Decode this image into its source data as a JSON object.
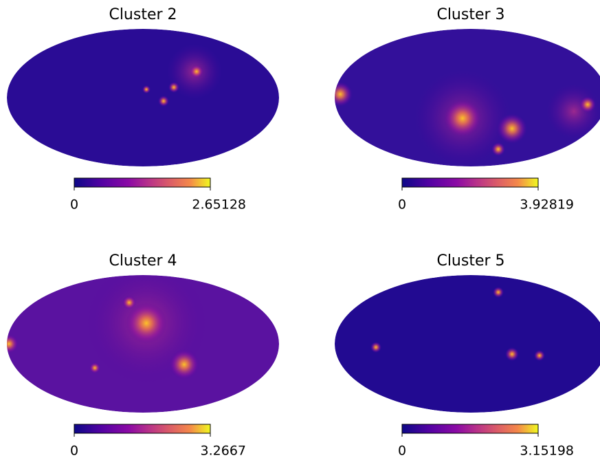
{
  "chart_data": [
    {
      "type": "sky_map",
      "title": "Cluster 2",
      "colorbar": {
        "lim": [
          0,
          2.65128
        ],
        "ticks": [
          0,
          2.65128
        ]
      }
    },
    {
      "type": "sky_map",
      "title": "Cluster 3",
      "colorbar": {
        "lim": [
          0,
          3.92819
        ],
        "ticks": [
          0,
          3.92819
        ]
      }
    },
    {
      "type": "sky_map",
      "title": "Cluster 4",
      "colorbar": {
        "lim": [
          0,
          3.2667
        ],
        "ticks": [
          0,
          3.2667
        ]
      }
    },
    {
      "type": "sky_map",
      "title": "Cluster 5",
      "colorbar": {
        "lim": [
          0,
          3.15198
        ],
        "ticks": [
          0,
          3.15198
        ]
      }
    }
  ]
}
